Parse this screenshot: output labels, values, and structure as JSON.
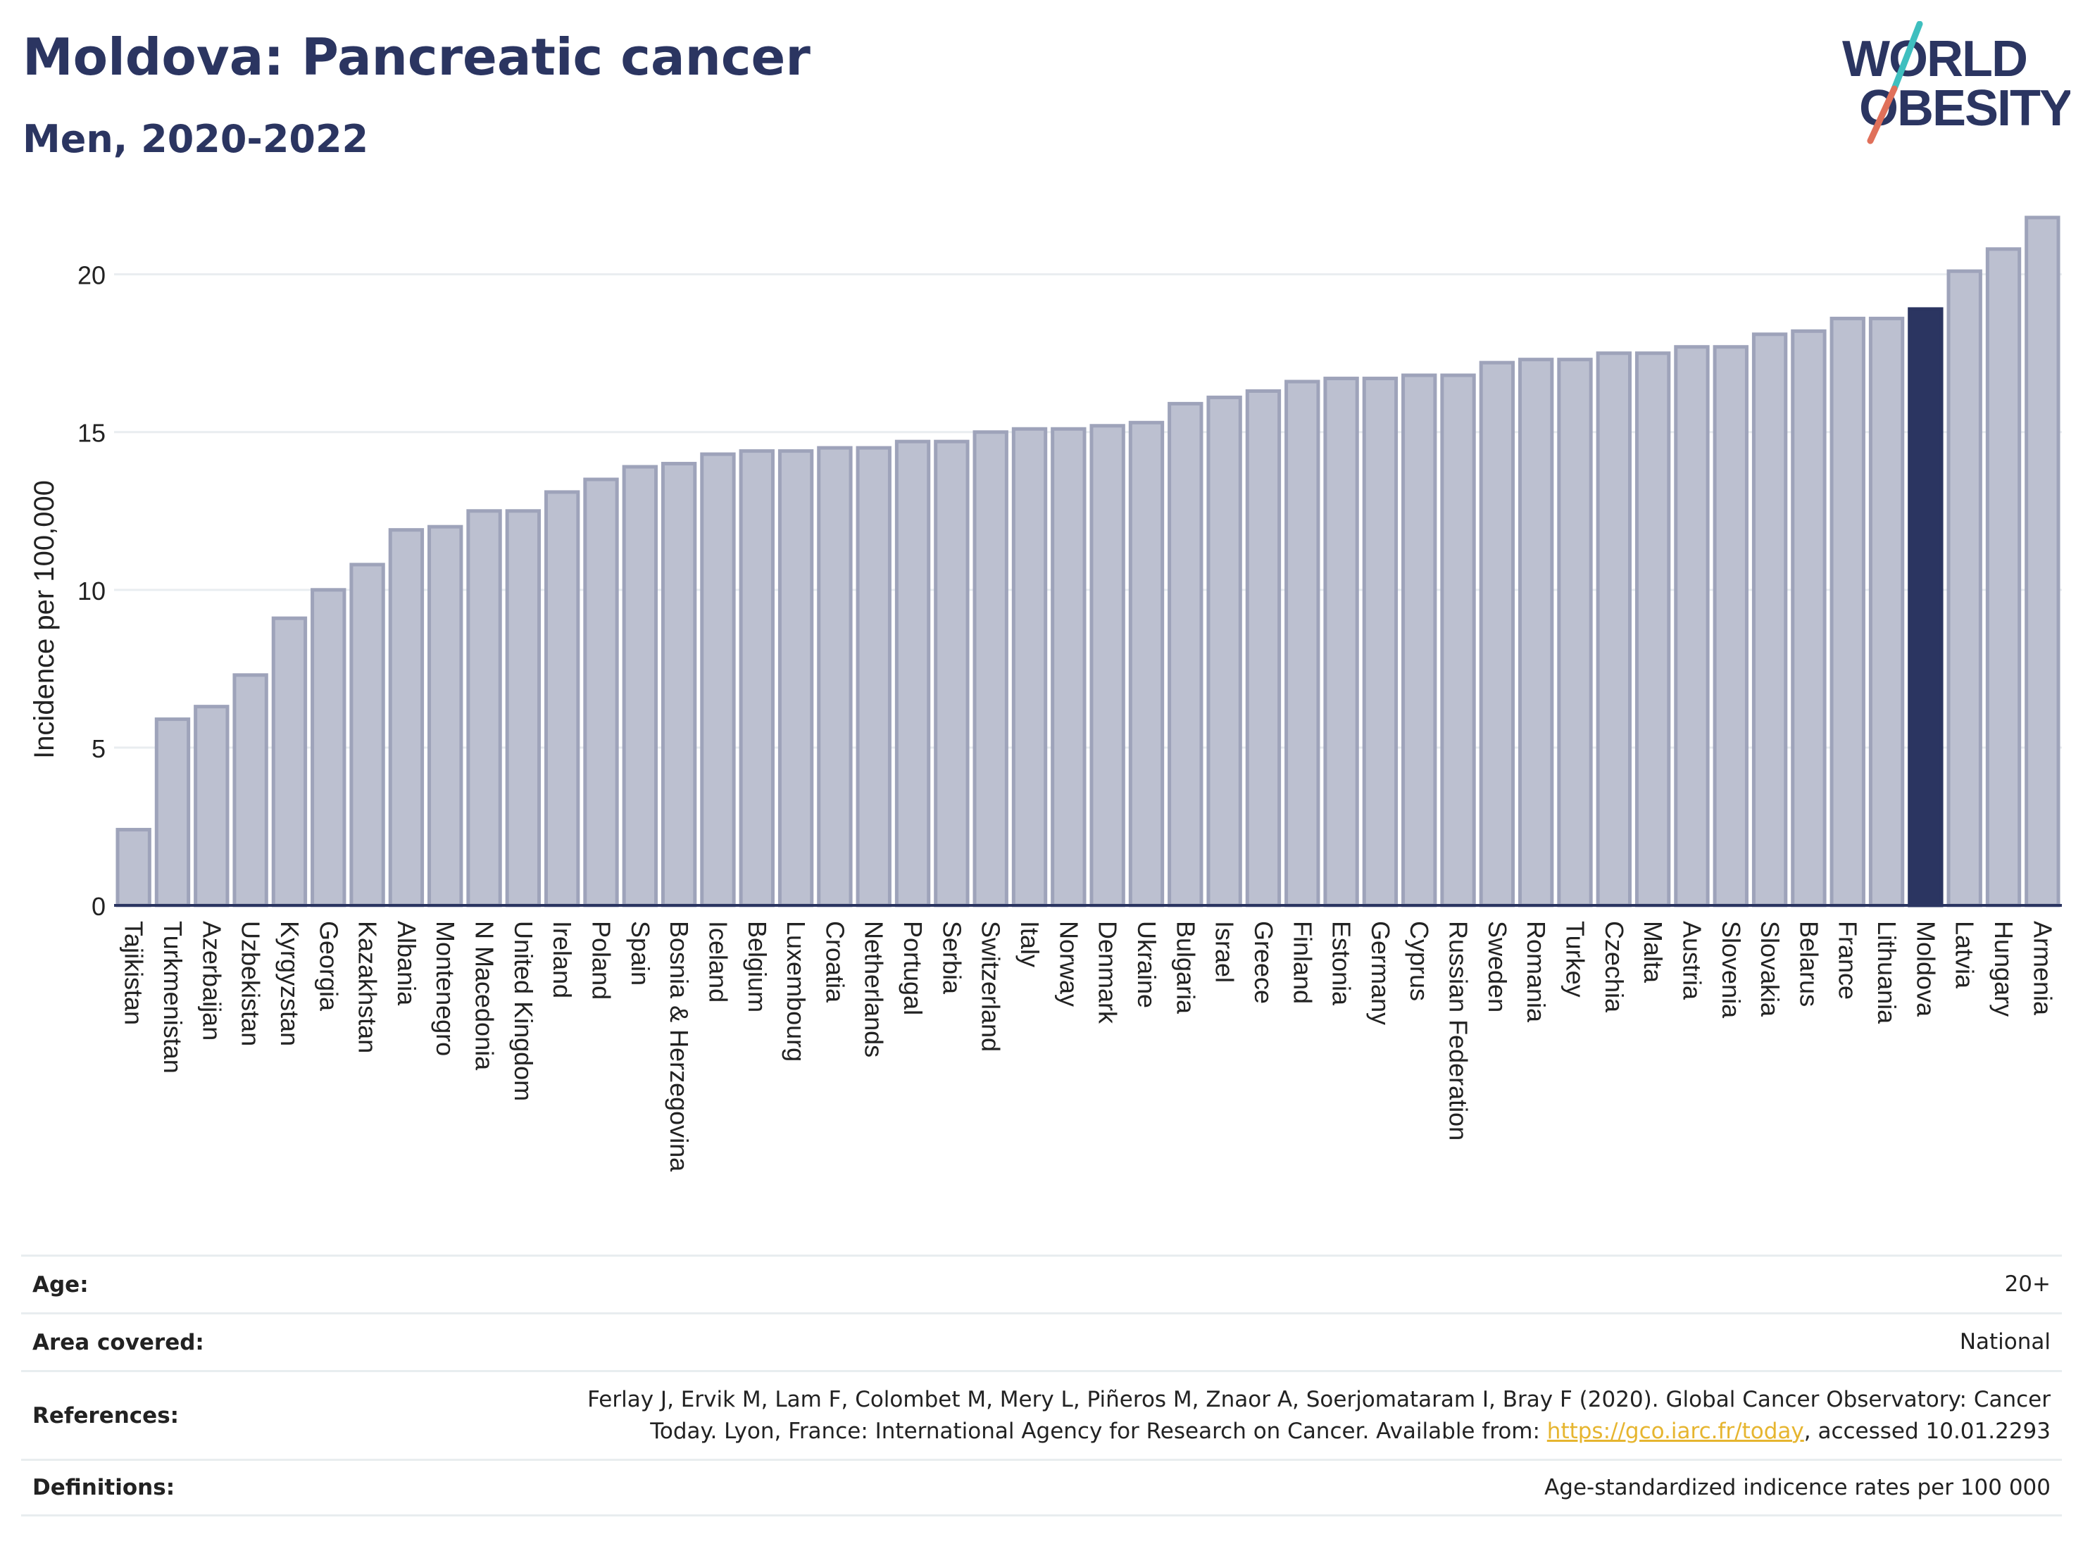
{
  "header": {
    "title": "Moldova: Pancreatic cancer",
    "subtitle": "Men, 2020-2022",
    "logo": {
      "line1": "WORLD",
      "line2": "OBESITY"
    }
  },
  "colors": {
    "title": "#2b3561",
    "bar": "#bcc0d0",
    "bar_border": "#9ea3ba",
    "highlight": "#2b3561",
    "link": "#e6b52f",
    "logo_slash_top": "#3fbfbf",
    "logo_slash_bottom": "#e0705a"
  },
  "chart_data": {
    "type": "bar",
    "ylabel": "Incidence per 100,000",
    "ylim": [
      0,
      22
    ],
    "yticks": [
      0,
      5,
      10,
      15,
      20
    ],
    "grid": true,
    "highlight": "Moldova",
    "categories": [
      "Tajikistan",
      "Turkmenistan",
      "Azerbaijan",
      "Uzbekistan",
      "Kyrgyzstan",
      "Georgia",
      "Kazakhstan",
      "Albania",
      "Montenegro",
      "N Macedonia",
      "United Kingdom",
      "Ireland",
      "Poland",
      "Spain",
      "Bosnia & Herzegovina",
      "Iceland",
      "Belgium",
      "Luxembourg",
      "Croatia",
      "Netherlands",
      "Portugal",
      "Serbia",
      "Switzerland",
      "Italy",
      "Norway",
      "Denmark",
      "Ukraine",
      "Bulgaria",
      "Israel",
      "Greece",
      "Finland",
      "Estonia",
      "Germany",
      "Cyprus",
      "Russian Federation",
      "Sweden",
      "Romania",
      "Turkey",
      "Czechia",
      "Malta",
      "Austria",
      "Slovenia",
      "Slovakia",
      "Belarus",
      "France",
      "Lithuania",
      "Moldova",
      "Latvia",
      "Hungary",
      "Armenia"
    ],
    "values": [
      2.4,
      5.9,
      6.3,
      7.3,
      9.1,
      10.0,
      10.8,
      11.9,
      12.0,
      12.5,
      12.5,
      13.1,
      13.5,
      13.9,
      14.0,
      14.3,
      14.4,
      14.4,
      14.5,
      14.5,
      14.7,
      14.7,
      15.0,
      15.1,
      15.1,
      15.2,
      15.3,
      15.9,
      16.1,
      16.3,
      16.6,
      16.7,
      16.7,
      16.8,
      16.8,
      17.2,
      17.3,
      17.3,
      17.5,
      17.5,
      17.7,
      17.7,
      18.1,
      18.2,
      18.6,
      18.6,
      18.9,
      20.1,
      20.8,
      21.8
    ]
  },
  "footer": {
    "rows": [
      {
        "key": "Age:",
        "value": "20+"
      },
      {
        "key": "Area covered:",
        "value": "National"
      }
    ],
    "references": {
      "key": "References:",
      "line1": "Ferlay J, Ervik M, Lam F, Colombet M, Mery L, Piñeros M, Znaor A, Soerjomataram I, Bray F (2020). Global Cancer Observatory: Cancer",
      "line2_pre": "Today. Lyon, France: International Agency for Research on Cancer. Available from: ",
      "link": "https://gco.iarc.fr/today",
      "line2_post": ", accessed 10.01.2293"
    },
    "definitions": {
      "key": "Definitions:",
      "value": "Age-standardized indicence rates per 100 000"
    }
  }
}
